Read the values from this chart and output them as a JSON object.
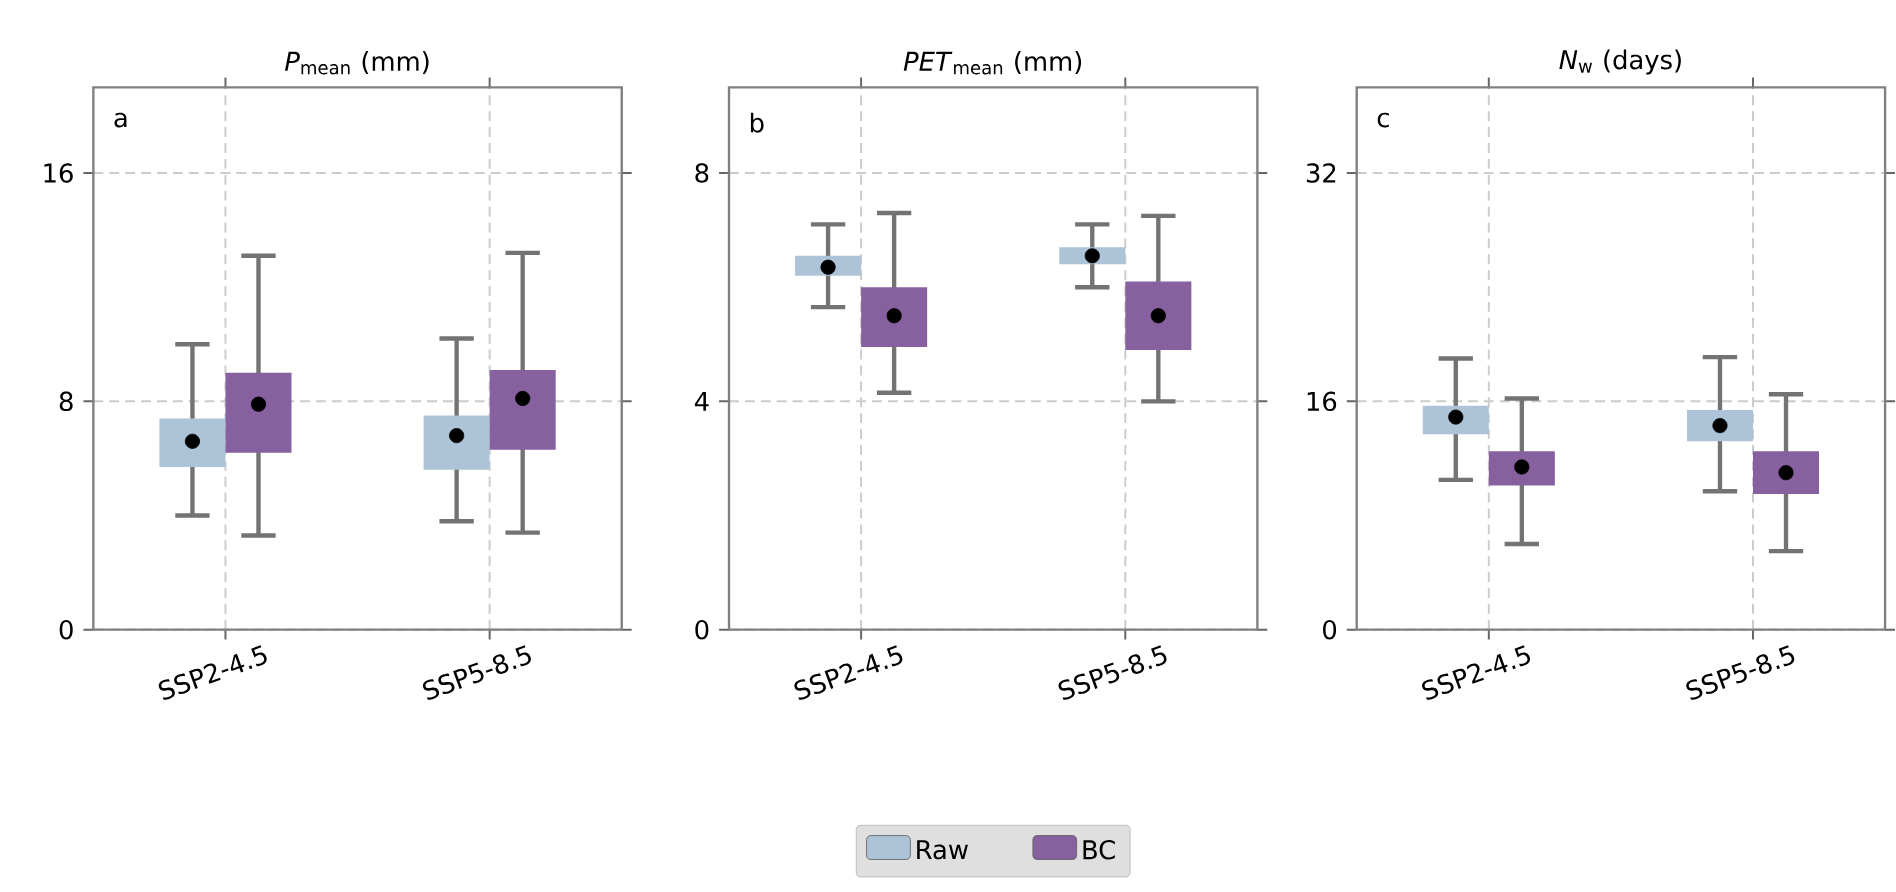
{
  "chart_data": [
    {
      "type": "box",
      "title": "*P*$_{mean}$ (mm)",
      "annotations": [
        "a"
      ],
      "categories": [
        "SSP2-4.5",
        "SSP5-8.5"
      ],
      "ylim": [
        0,
        19
      ],
      "yticks": [
        0,
        8,
        16
      ],
      "grid": true,
      "series": [
        {
          "color": "#adc4d8",
          "boxes": [
            {
              "low": 4.0,
              "q1": 5.7,
              "q3": 7.4,
              "high": 10.0,
              "mean": 6.6
            },
            {
              "low": 3.8,
              "q1": 5.6,
              "q3": 7.5,
              "high": 10.2,
              "mean": 6.8
            }
          ]
        },
        {
          "color": "#8760a0",
          "boxes": [
            {
              "low": 3.3,
              "q1": 6.2,
              "q3": 9.0,
              "high": 13.1,
              "mean": 7.9
            },
            {
              "low": 3.4,
              "q1": 6.3,
              "q3": 9.1,
              "high": 13.2,
              "mean": 8.1
            }
          ]
        }
      ]
    },
    {
      "type": "box",
      "title": "*PET*$_{mean}$ (mm)",
      "annotations": [
        "b"
      ],
      "categories": [
        "SSP2-4.5",
        "SSP5-8.5"
      ],
      "ylim": [
        0,
        9.5
      ],
      "yticks": [
        0,
        4,
        8
      ],
      "grid": true,
      "legend": "bottom",
      "series": [
        {
          "name": "Raw",
          "color": "#adc4d8",
          "boxes": [
            {
              "low": 5.65,
              "q1": 6.2,
              "q3": 6.55,
              "high": 7.1,
              "mean": 6.35
            },
            {
              "low": 6.0,
              "q1": 6.4,
              "q3": 6.7,
              "high": 7.1,
              "mean": 6.55
            }
          ]
        },
        {
          "name": "BC",
          "color": "#8760a0",
          "boxes": [
            {
              "low": 4.15,
              "q1": 4.95,
              "q3": 6.0,
              "high": 7.3,
              "mean": 5.5
            },
            {
              "low": 4.0,
              "q1": 4.9,
              "q3": 6.1,
              "high": 7.25,
              "mean": 5.5
            }
          ]
        }
      ]
    },
    {
      "type": "box",
      "title": "*N*$_{w}$ (days)",
      "annotations": [
        "c"
      ],
      "categories": [
        "SSP2-4.5",
        "SSP5-8.5"
      ],
      "ylim": [
        0,
        38
      ],
      "yticks": [
        0,
        16,
        32
      ],
      "grid": true,
      "series": [
        {
          "color": "#adc4d8",
          "boxes": [
            {
              "low": 10.5,
              "q1": 13.7,
              "q3": 15.7,
              "high": 19.0,
              "mean": 14.9
            },
            {
              "low": 9.7,
              "q1": 13.2,
              "q3": 15.4,
              "high": 19.1,
              "mean": 14.3
            }
          ]
        },
        {
          "color": "#8760a0",
          "boxes": [
            {
              "low": 6.0,
              "q1": 10.1,
              "q3": 12.5,
              "high": 16.2,
              "mean": 11.4
            },
            {
              "low": 5.5,
              "q1": 9.5,
              "q3": 12.5,
              "high": 16.5,
              "mean": 11.0
            }
          ]
        }
      ]
    }
  ]
}
